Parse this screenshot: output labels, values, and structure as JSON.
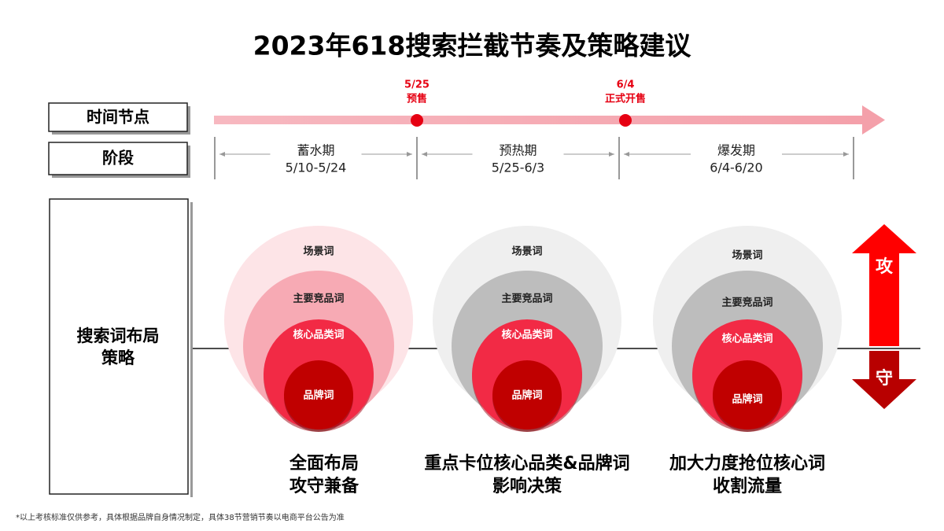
{
  "title": "2023年618搜索拦截节奏及策略建议",
  "labels": {
    "time_node": "时间节点",
    "stage": "阶段",
    "strategy": [
      "搜索词布局",
      "策略"
    ]
  },
  "milestones": [
    {
      "date": "5/25",
      "label": "预售"
    },
    {
      "date": "6/4",
      "label": "正式开售"
    }
  ],
  "phases": [
    {
      "name": "蓄水期",
      "range": "5/10-5/24"
    },
    {
      "name": "预热期",
      "range": "5/25-6/3"
    },
    {
      "name": "爆发期",
      "range": "6/4-6/20"
    }
  ],
  "groups": [
    {
      "rings": [
        "场景词",
        "主要竞品词",
        "核心品类词",
        "品牌词"
      ],
      "caption": [
        "全面布局",
        "攻守兼备"
      ]
    },
    {
      "rings": [
        "场景词",
        "主要竞品词",
        "核心品类词",
        "品牌词"
      ],
      "caption": [
        "重点卡位核心品类&品牌词",
        "影响决策"
      ]
    },
    {
      "rings": [
        "场景词",
        "主要竞品词",
        "核心品类词",
        "品牌词"
      ],
      "caption": [
        "加大力度抢位核心词",
        "收割流量"
      ]
    }
  ],
  "attack": "攻",
  "defend": "守",
  "footnote": "*以上考核标准仅供参考，具体根据品牌自身情况制定，具体38节营销节奏以电商平台公告为准"
}
